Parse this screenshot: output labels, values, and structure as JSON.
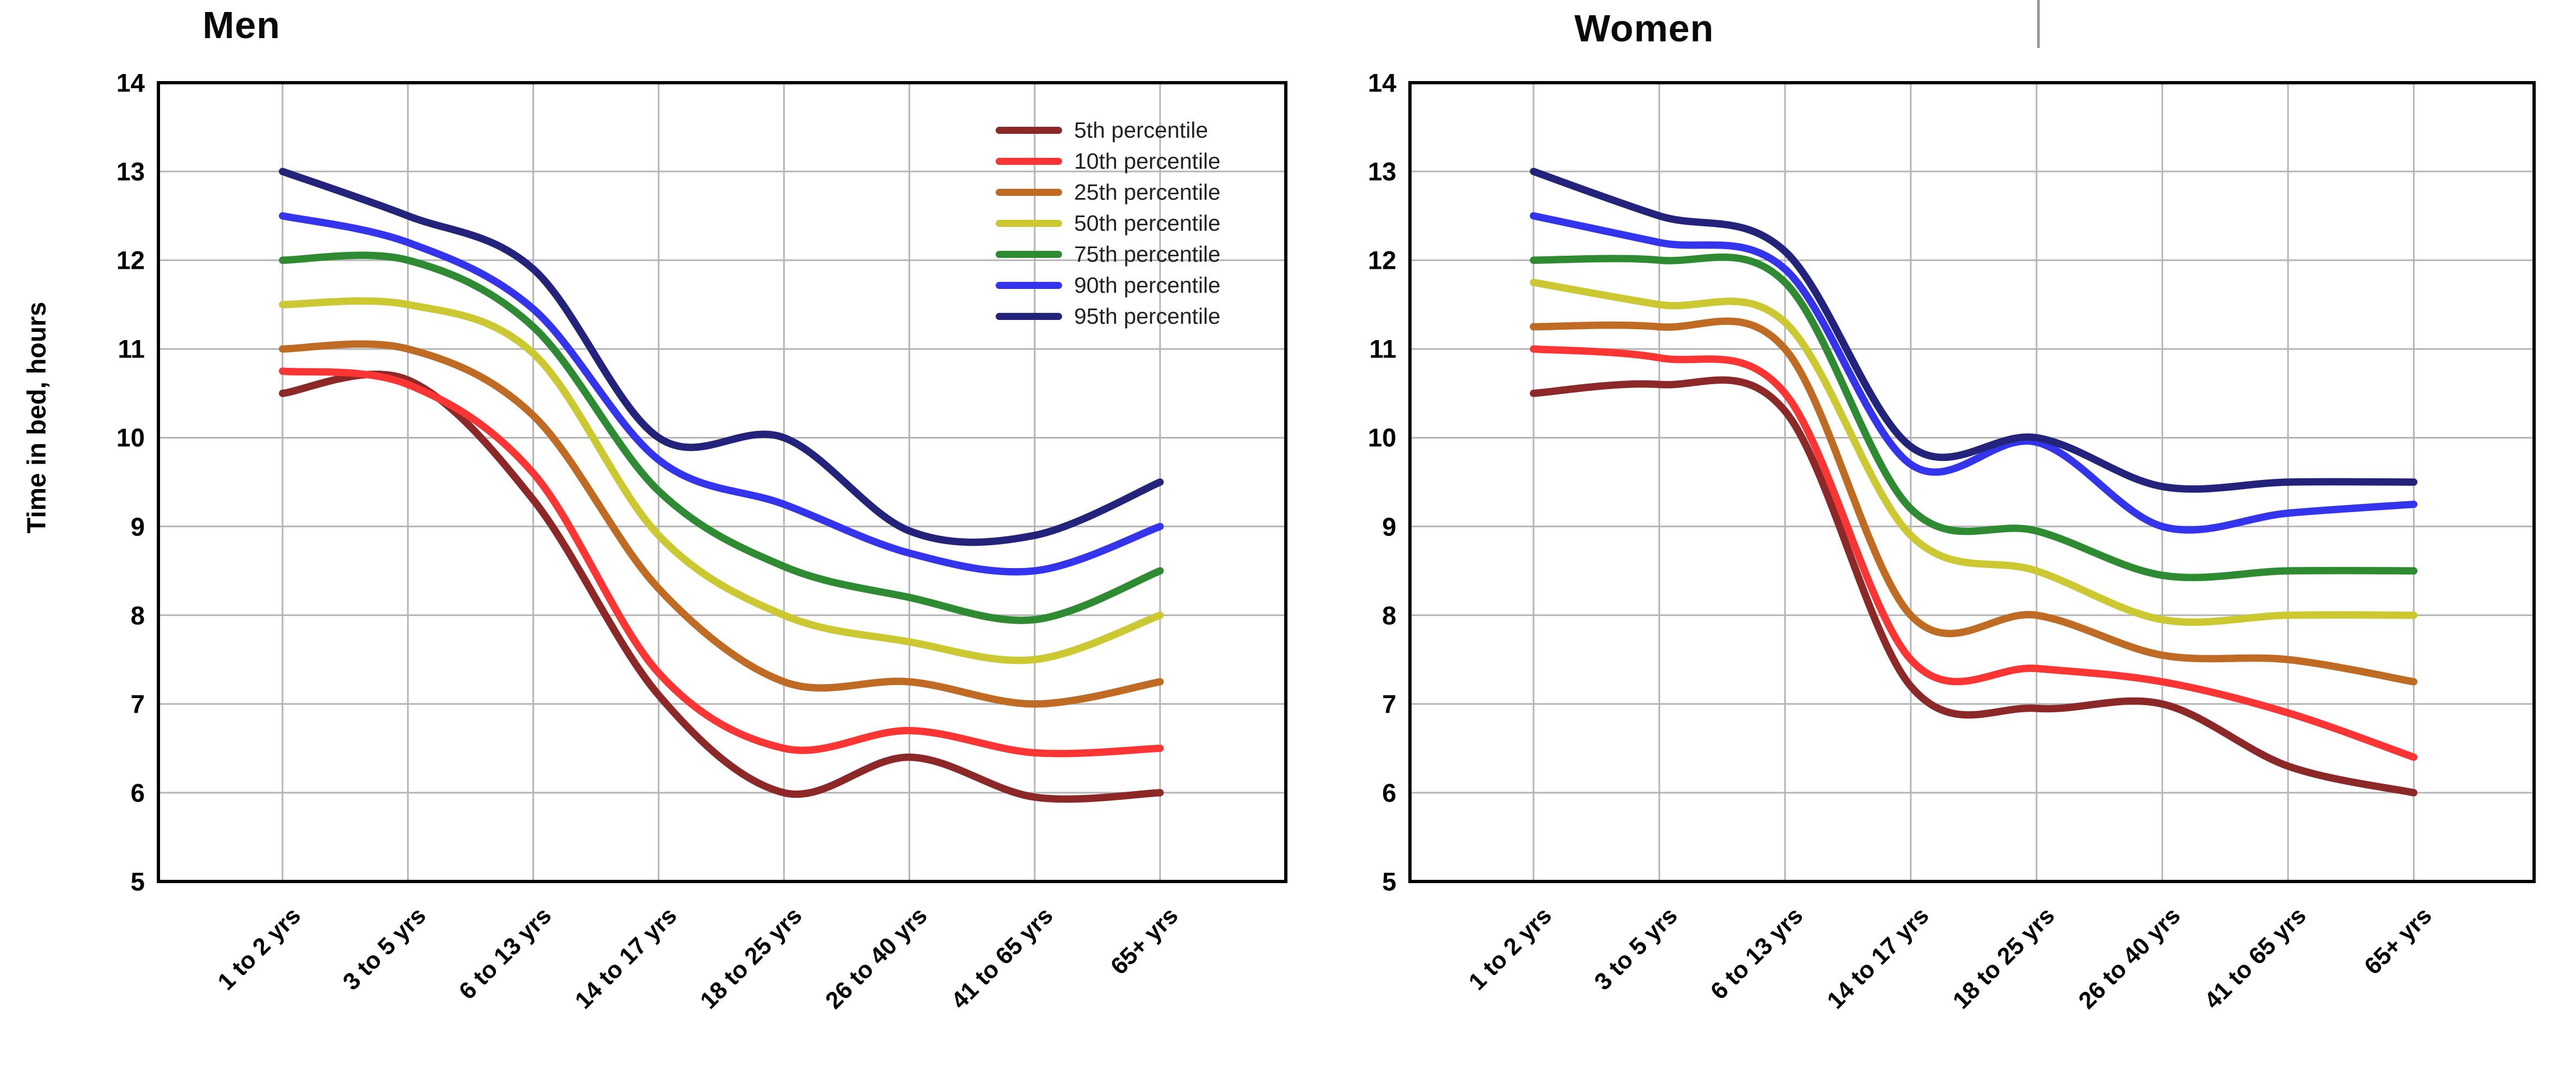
{
  "chart_data": {
    "type": "line",
    "categories": [
      "1 to 2 yrs",
      "3 to 5 yrs",
      "6 to 13 yrs",
      "14 to 17 yrs",
      "18 to 25 yrs",
      "26 to 40 yrs",
      "41 to 65 yrs",
      "65+ yrs"
    ],
    "ylabel": "Time in bed, hours",
    "ylim": [
      5,
      14
    ],
    "yticks": [
      14,
      13,
      12,
      11,
      10,
      9,
      8,
      7,
      6,
      5
    ],
    "grid": "on",
    "legend_position": "top-right-of-first-chart",
    "colors": {
      "p5": "#8C2828",
      "p10": "#FB3434",
      "p25": "#C06B24",
      "p50": "#CCC832",
      "p75": "#2E8B31",
      "p90": "#3434EC",
      "p95": "#23237C",
      "grid": "#b5b5b5",
      "border": "#000000"
    },
    "charts": [
      {
        "title": "Men",
        "show_ylabel": true,
        "show_legend": true,
        "series": [
          {
            "name": "5th percentile",
            "color": "#8C2828",
            "values": [
              10.5,
              10.65,
              9.3,
              7.1,
              6.0,
              6.4,
              5.95,
              6.0
            ]
          },
          {
            "name": "10th percentile",
            "color": "#FB3434",
            "values": [
              10.75,
              10.6,
              9.6,
              7.35,
              6.5,
              6.7,
              6.45,
              6.5
            ]
          },
          {
            "name": "25th percentile",
            "color": "#C06B24",
            "values": [
              11.0,
              11.0,
              10.25,
              8.3,
              7.25,
              7.25,
              7.0,
              7.25
            ]
          },
          {
            "name": "50th percentile",
            "color": "#CCC832",
            "values": [
              11.5,
              11.5,
              10.95,
              8.9,
              8.0,
              7.7,
              7.5,
              8.0
            ]
          },
          {
            "name": "75th percentile",
            "color": "#2E8B31",
            "values": [
              12.0,
              12.0,
              11.25,
              9.4,
              8.55,
              8.2,
              7.95,
              8.5
            ]
          },
          {
            "name": "90th percentile",
            "color": "#3434EC",
            "values": [
              12.5,
              12.2,
              11.45,
              9.75,
              9.25,
              8.7,
              8.5,
              9.0
            ]
          },
          {
            "name": "95th percentile",
            "color": "#23237C",
            "values": [
              13.0,
              12.5,
              11.9,
              10.0,
              10.0,
              8.95,
              8.9,
              9.5
            ]
          }
        ]
      },
      {
        "title": "Women",
        "show_ylabel": false,
        "show_legend": false,
        "series": [
          {
            "name": "5th percentile",
            "color": "#8C2828",
            "values": [
              10.5,
              10.6,
              10.3,
              7.2,
              6.95,
              7.0,
              6.3,
              6.0
            ]
          },
          {
            "name": "10th percentile",
            "color": "#FB3434",
            "values": [
              11.0,
              10.9,
              10.5,
              7.5,
              7.4,
              7.25,
              6.9,
              6.4
            ]
          },
          {
            "name": "25th percentile",
            "color": "#C06B24",
            "values": [
              11.25,
              11.25,
              11.0,
              8.0,
              8.0,
              7.55,
              7.5,
              7.25
            ]
          },
          {
            "name": "50th percentile",
            "color": "#CCC832",
            "values": [
              11.75,
              11.5,
              11.3,
              8.9,
              8.5,
              7.95,
              8.0,
              8.0
            ]
          },
          {
            "name": "75th percentile",
            "color": "#2E8B31",
            "values": [
              12.0,
              12.0,
              11.75,
              9.2,
              8.95,
              8.45,
              8.5,
              8.5
            ]
          },
          {
            "name": "90th percentile",
            "color": "#3434EC",
            "values": [
              12.5,
              12.2,
              11.9,
              9.7,
              9.95,
              9.0,
              9.15,
              9.25
            ]
          },
          {
            "name": "95th percentile",
            "color": "#23237C",
            "values": [
              13.0,
              12.5,
              12.1,
              9.9,
              10.0,
              9.45,
              9.5,
              9.5
            ]
          }
        ]
      }
    ],
    "legend_labels": [
      "5th percentile",
      "10th percentile",
      "25th percentile",
      "50th percentile",
      "75th percentile",
      "90th percentile",
      "95th percentile"
    ]
  },
  "layout_note_artifact": "short gray vertical line at top of image near women chart"
}
